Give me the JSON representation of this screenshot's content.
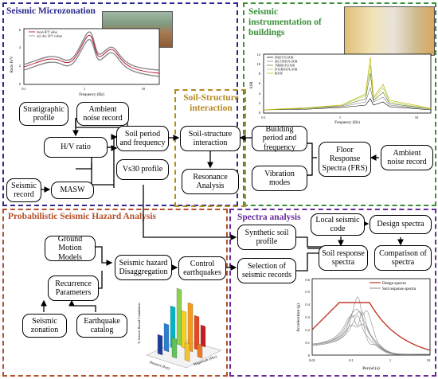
{
  "panels": {
    "microzonation": {
      "title": "Seismic Microzonation",
      "color": "#2b2a8f"
    },
    "instrumentation": {
      "title": "Seismic instrumentation of buildings",
      "color": "#3a8f3a"
    },
    "ssi": {
      "title": "Soil-Structure interaction",
      "color": "#b58a22"
    },
    "probabilistic": {
      "title": "Probabilistic Seismic Hazard Analysis",
      "color": "#b5502a"
    },
    "spectra": {
      "title": "Spectra analysis",
      "color": "#6a2a9a"
    }
  },
  "boxes": {
    "stratigraphic": "Stratigraphic profile",
    "ambient_left": "Ambient noise record",
    "hv_ratio": "H/V ratio",
    "soil_period": "Soil period and frequency",
    "vs30": "Vs30 profile",
    "seismic_record": "Seismic record",
    "masw": "MASW",
    "ssi": "Soil-structure interaction",
    "resonance": "Resonance Analysis",
    "building_period": "Building period and frequency",
    "floor_response": "Floor Response Spectra (FRS)",
    "ambient_right": "Ambient noise record",
    "vibration_modes": "Vibration modes",
    "ground_motion": "Ground Motion Models",
    "recurrence": "Recurrence Parameters",
    "seismic_zonation": "Seismic zonation",
    "earthquake_catalog": "Earthquake catalog",
    "disaggregation": "Seismic hazard Disaggregation",
    "control_eq": "Control earthquakes",
    "synthetic_soil": "Synthetic soil profile",
    "selection_records": "Selection of seismic records",
    "local_code": "Local seismic code",
    "design_spectra": "Design spectra",
    "soil_response": "Soil response spectra",
    "comparison": "Comparison of spectra"
  },
  "hv_chart": {
    "ylabel": "Ratio H/V",
    "xlabel": "Frequency (Hz)",
    "legend": [
      "mean H/V value",
      "std. dev. H/V values"
    ],
    "yticks": [
      "0",
      "2",
      "4",
      "6"
    ],
    "xticks": [
      "0.1",
      "1",
      "10"
    ]
  },
  "ssr_chart": {
    "ylabel": "SSR",
    "xlabel": "Frequency (Hz)",
    "legend": [
      "FIRST FLOOR",
      "SECOND FLOOR",
      "THIRD FLOOR",
      "FOURTH FLOOR",
      "ROOF"
    ],
    "yticks": [
      "0",
      "2",
      "4",
      "6",
      "8",
      "10",
      "12"
    ],
    "xticks": [
      "0.1",
      "1",
      "10"
    ]
  },
  "bar3d": {
    "zlabel": "% Seismic Hazard Contribution",
    "xlabel": "Distance (Km)",
    "ylabel": "Magnitude (Mw)"
  },
  "spectra_chart": {
    "ylabel": "Acceleration (g)",
    "xlabel": "Period (s)",
    "legend": [
      "Design spectra",
      "Soil response spectra"
    ],
    "yticks": [
      "0",
      "0.1",
      "0.2",
      "0.3",
      "0.4",
      "0.5",
      "0.6"
    ],
    "xticks": [
      "0.01",
      "0.1",
      "1",
      "10"
    ],
    "colors": {
      "design": "#c0392b",
      "soil": "#888888"
    }
  }
}
